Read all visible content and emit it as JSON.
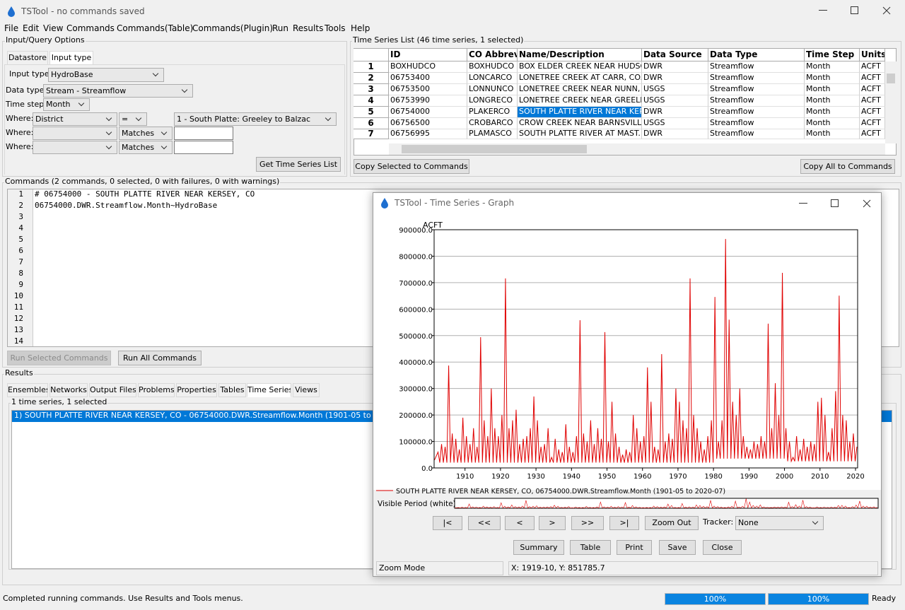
{
  "window": {
    "title": "TSTool - no commands saved",
    "menu": [
      "File",
      "Edit",
      "View",
      "Commands",
      "Commands(Table)",
      "Commands(Plugin)",
      "Run",
      "Results",
      "Tools",
      "Help"
    ]
  },
  "input_query": {
    "legend": "Input/Query Options",
    "tabs": [
      "Datastore",
      "Input type"
    ],
    "input_type_label": "Input type:",
    "input_type": "HydroBase",
    "data_type_label": "Data type:",
    "data_type": "Stream - Streamflow",
    "time_step_label": "Time step:",
    "time_step": "Month",
    "where": [
      {
        "label": "Where:",
        "field": "District",
        "op": "=",
        "value": "1 - South Platte: Greeley to Balzac"
      },
      {
        "label": "Where:",
        "op": "Matches"
      },
      {
        "label": "Where:",
        "op": "Matches"
      }
    ],
    "button": "Get Time Series List"
  },
  "ts_list": {
    "legend": "Time Series List (46 time series, 1 selected)",
    "columns": [
      "ID",
      "CO Abbrev.",
      "Name/Description",
      "Data Source",
      "Data Type",
      "Time Step",
      "Units"
    ],
    "rows": [
      [
        1,
        "BOXHUDCO",
        "BOXHUDCO",
        "BOX ELDER CREEK NEAR HUDSO...",
        "DWR",
        "Streamflow",
        "Month",
        "ACFT"
      ],
      [
        2,
        "06753400",
        "LONCARCO",
        "LONETREE CREEK AT CARR, CO.",
        "DWR",
        "Streamflow",
        "Month",
        "ACFT"
      ],
      [
        3,
        "06753500",
        "LONNUNCO",
        "LONETREE CREEK NEAR NUNN, C...",
        "USGS",
        "Streamflow",
        "Month",
        "ACFT"
      ],
      [
        4,
        "06753990",
        "LONGRECO",
        "LONETREE CREEK NEAR GREELE...",
        "USGS",
        "Streamflow",
        "Month",
        "ACFT"
      ],
      [
        5,
        "06754000",
        "PLAKERCO",
        "SOUTH PLATTE RIVER NEAR KER...",
        "DWR",
        "Streamflow",
        "Month",
        "ACFT"
      ],
      [
        6,
        "06756500",
        "CROBARCO",
        "CROW CREEK NEAR BARNSVILL...",
        "USGS",
        "Streamflow",
        "Month",
        "ACFT"
      ],
      [
        7,
        "06756995",
        "PLAMASCO",
        "SOUTH PLATTE RIVER AT MAST...",
        "DWR",
        "Streamflow",
        "Month",
        "ACFT"
      ]
    ],
    "selected_row": 4,
    "buttons": [
      "Copy Selected to Commands",
      "Copy All to Commands"
    ]
  },
  "commands": {
    "legend": "Commands (2 commands, 0 selected, 0 with failures, 0 with warnings)",
    "line_numbers": [
      1,
      2,
      3,
      4,
      5,
      6,
      7,
      8,
      9,
      10,
      11,
      12,
      13,
      14
    ],
    "lines": [
      "# 06754000 - SOUTH PLATTE RIVER NEAR KERSEY, CO",
      "06754000.DWR.Streamflow.Month~HydroBase"
    ],
    "buttons": [
      "Run Selected Commands",
      "Run All Commands"
    ]
  },
  "results": {
    "legend": "Results",
    "tabs": [
      "Ensembles",
      "Networks",
      "Output Files",
      "Problems",
      "Properties",
      "Tables",
      "Time Series",
      "Views"
    ],
    "sub_legend": "1 time series, 1 selected",
    "items": [
      "1) SOUTH PLATTE RIVER NEAR KERSEY, CO - 06754000.DWR.Streamflow.Month (1901-05 to 2020-07)"
    ]
  },
  "status": {
    "message": "Completed running commands.  Use Results and Tools menus.",
    "progress": [
      "100%",
      "100%"
    ],
    "state": "Ready"
  },
  "graph_window": {
    "title": "TSTool - Time Series - Graph",
    "visible_period": "Visible Period (white):",
    "nav": [
      "|<",
      "<<",
      "<",
      ">",
      ">>",
      ">|"
    ],
    "zoom_out": "Zoom Out",
    "tracker_label": "Tracker:",
    "tracker": "None",
    "buttons": [
      "Summary",
      "Table",
      "Print",
      "Save",
      "Close"
    ],
    "mode": "Zoom Mode",
    "position": "X:  1919-10, Y:  851785.7"
  },
  "chart_data": {
    "type": "line",
    "y_label": "ACFT",
    "grid": true,
    "xlim": [
      1901.3,
      2020.6
    ],
    "xticks": [
      1910,
      1920,
      1930,
      1940,
      1950,
      1960,
      1970,
      1980,
      1990,
      2000,
      2010,
      2020
    ],
    "ylim": [
      0,
      900000
    ],
    "yticks": [
      {
        "value": 0,
        "label": "0.0"
      },
      {
        "value": 100000,
        "label": "100000.0"
      },
      {
        "value": 200000,
        "label": "200000.0"
      },
      {
        "value": 300000,
        "label": "300000.0"
      },
      {
        "value": 400000,
        "label": "400000.0"
      },
      {
        "value": 500000,
        "label": "500000.0"
      },
      {
        "value": 600000,
        "label": "600000.0"
      },
      {
        "value": 700000,
        "label": "700000.0"
      },
      {
        "value": 800000,
        "label": "800000.0"
      },
      {
        "value": 900000,
        "label": "900000.0"
      }
    ],
    "x": [
      1901.4,
      1902.4,
      1902.9,
      1903.4,
      1903.9,
      1904.4,
      1904.9,
      1905.4,
      1905.9,
      1906.4,
      1906.9,
      1907.4,
      1907.9,
      1908.4,
      1908.9,
      1909.4,
      1909.9,
      1910.4,
      1910.9,
      1911.4,
      1911.9,
      1912.4,
      1912.9,
      1913.4,
      1913.9,
      1914.4,
      1914.9,
      1915.4,
      1915.9,
      1916.4,
      1916.9,
      1917.4,
      1917.9,
      1918.4,
      1918.9,
      1919.4,
      1919.9,
      1920.4,
      1920.9,
      1921.4,
      1921.9,
      1922.4,
      1922.9,
      1923.4,
      1923.9,
      1924.4,
      1924.9,
      1925.4,
      1925.9,
      1926.4,
      1926.9,
      1927.4,
      1927.9,
      1928.4,
      1928.9,
      1929.4,
      1929.9,
      1930.4,
      1930.9,
      1931.4,
      1931.9,
      1932.4,
      1932.9,
      1933.4,
      1933.9,
      1934.4,
      1934.9,
      1935.4,
      1935.9,
      1936.4,
      1936.9,
      1937.4,
      1937.9,
      1938.4,
      1938.9,
      1939.4,
      1939.9,
      1940.4,
      1940.9,
      1941.4,
      1941.9,
      1942.4,
      1942.9,
      1943.4,
      1943.9,
      1944.4,
      1944.9,
      1945.4,
      1945.9,
      1946.4,
      1946.9,
      1947.4,
      1947.9,
      1948.4,
      1948.9,
      1949.4,
      1949.9,
      1950.4,
      1950.9,
      1951.4,
      1951.9,
      1952.4,
      1952.9,
      1953.4,
      1953.9,
      1954.4,
      1954.9,
      1955.4,
      1955.9,
      1956.4,
      1956.9,
      1957.4,
      1957.9,
      1958.4,
      1958.9,
      1959.4,
      1959.9,
      1960.4,
      1960.9,
      1961.4,
      1961.9,
      1962.4,
      1962.9,
      1963.4,
      1963.9,
      1964.4,
      1964.9,
      1965.4,
      1965.9,
      1966.4,
      1966.9,
      1967.4,
      1967.9,
      1968.4,
      1968.9,
      1969.4,
      1969.9,
      1970.4,
      1970.9,
      1971.4,
      1971.9,
      1972.4,
      1972.9,
      1973.4,
      1973.9,
      1974.4,
      1974.9,
      1975.4,
      1975.9,
      1976.4,
      1976.9,
      1977.4,
      1977.9,
      1978.4,
      1978.9,
      1979.4,
      1979.9,
      1980.4,
      1980.9,
      1981.4,
      1981.9,
      1982.4,
      1982.9,
      1983.4,
      1983.9,
      1984.4,
      1984.9,
      1985.4,
      1985.9,
      1986.4,
      1986.9,
      1987.4,
      1987.9,
      1988.4,
      1988.9,
      1989.4,
      1989.9,
      1990.4,
      1990.9,
      1991.4,
      1991.9,
      1992.4,
      1992.9,
      1993.4,
      1993.9,
      1994.4,
      1994.9,
      1995.4,
      1995.9,
      1996.4,
      1996.9,
      1997.4,
      1997.9,
      1998.4,
      1998.9,
      1999.4,
      1999.9,
      2000.4,
      2000.9,
      2001.4,
      2001.9,
      2002.4,
      2002.9,
      2003.4,
      2003.9,
      2004.4,
      2004.9,
      2005.4,
      2005.9,
      2006.4,
      2006.9,
      2007.4,
      2007.9,
      2008.4,
      2008.9,
      2009.4,
      2009.9,
      2010.4,
      2010.9,
      2011.4,
      2011.9,
      2012.4,
      2012.9,
      2013.4,
      2013.9,
      2014.4,
      2014.9,
      2015.4,
      2015.9,
      2016.4,
      2016.9,
      2017.4,
      2017.9,
      2018.4,
      2018.9,
      2019.4,
      2019.9,
      2020.4
    ],
    "series": [
      {
        "name": "SOUTH PLATTE RIVER NEAR KERSEY, CO, 06754000.DWR.Streamflow.Month (1901-05 to 2020-07)",
        "color": "#e00000",
        "values": [
          30000,
          60000,
          20000,
          90000,
          20000,
          80000,
          20000,
          387000,
          20000,
          130000,
          20000,
          110000,
          20000,
          70000,
          20000,
          190000,
          20000,
          120000,
          20000,
          90000,
          20000,
          150000,
          20000,
          80000,
          20000,
          494000,
          20000,
          180000,
          20000,
          120000,
          20000,
          300000,
          20000,
          150000,
          20000,
          120000,
          20000,
          200000,
          20000,
          716000,
          20000,
          150000,
          20000,
          180000,
          20000,
          220000,
          20000,
          90000,
          20000,
          110000,
          20000,
          120000,
          20000,
          150000,
          20000,
          270000,
          20000,
          180000,
          20000,
          80000,
          20000,
          90000,
          20000,
          150000,
          20000,
          40000,
          20000,
          110000,
          20000,
          70000,
          20000,
          60000,
          20000,
          165000,
          20000,
          80000,
          20000,
          60000,
          20000,
          120000,
          20000,
          558000,
          20000,
          130000,
          20000,
          100000,
          20000,
          180000,
          20000,
          90000,
          20000,
          150000,
          20000,
          110000,
          20000,
          513000,
          20000,
          100000,
          20000,
          250000,
          20000,
          130000,
          20000,
          80000,
          20000,
          50000,
          20000,
          70000,
          20000,
          60000,
          20000,
          200000,
          20000,
          150000,
          20000,
          100000,
          20000,
          120000,
          20000,
          380000,
          20000,
          250000,
          20000,
          80000,
          20000,
          70000,
          20000,
          430000,
          20000,
          100000,
          20000,
          130000,
          20000,
          110000,
          20000,
          300000,
          20000,
          250000,
          20000,
          180000,
          20000,
          150000,
          20000,
          716000,
          20000,
          200000,
          20000,
          150000,
          20000,
          100000,
          20000,
          70000,
          20000,
          120000,
          20000,
          180000,
          20000,
          646000,
          35000,
          100000,
          35000,
          180000,
          35000,
          865000,
          35000,
          560000,
          35000,
          250000,
          35000,
          200000,
          35000,
          300000,
          35000,
          120000,
          35000,
          80000,
          35000,
          70000,
          35000,
          100000,
          35000,
          90000,
          35000,
          120000,
          35000,
          100000,
          35000,
          545000,
          35000,
          150000,
          35000,
          320000,
          35000,
          200000,
          35000,
          737000,
          35000,
          150000,
          25000,
          100000,
          25000,
          40000,
          25000,
          120000,
          25000,
          70000,
          25000,
          110000,
          25000,
          80000,
          25000,
          100000,
          25000,
          90000,
          25000,
          250000,
          25000,
          265000,
          25000,
          200000,
          25000,
          60000,
          25000,
          150000,
          25000,
          290000,
          25000,
          651000,
          25000,
          200000,
          25000,
          180000,
          25000,
          100000,
          25000,
          130000,
          25000,
          80000
        ]
      }
    ]
  }
}
